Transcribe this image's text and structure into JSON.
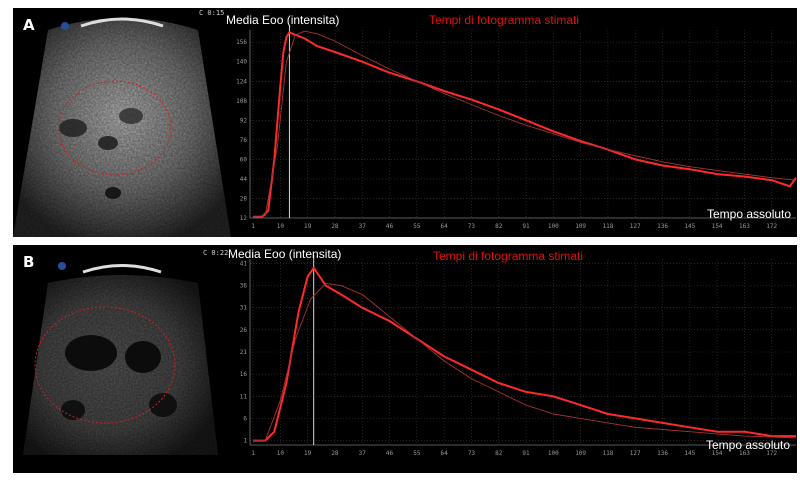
{
  "panels": [
    {
      "letter": "A",
      "depth_label": "C 0:15",
      "chart_title": "Media Eoo (intensita)",
      "chart_subtitle": "Tempi di fotogramma stimati",
      "x_label": "Tempo assoluto"
    },
    {
      "letter": "B",
      "depth_label": "C 0:22",
      "chart_title": "Media Eoo (intensita)",
      "chart_subtitle": "Tempi di fotogramma stimati",
      "x_label": "Tempo assoluto"
    }
  ],
  "chart_data": [
    {
      "type": "line",
      "title": "Media Eoo (intensita)",
      "subtitle": "Tempi di fotogramma stimati",
      "xlabel": "Tempo assoluto",
      "ylabel": "",
      "xlim": [
        0,
        180
      ],
      "ylim": [
        12,
        166
      ],
      "x_ticks": [
        1,
        10,
        19,
        28,
        37,
        46,
        55,
        64,
        73,
        82,
        91,
        100,
        109,
        118,
        127,
        136,
        145,
        154,
        163,
        172
      ],
      "y_ticks": [
        12,
        28,
        44,
        60,
        76,
        92,
        108,
        124,
        140,
        156
      ],
      "grid": true,
      "peak_marker_x": 13,
      "series": [
        {
          "style": "measured",
          "color": "#ff2a2a",
          "x": [
            1,
            4,
            6,
            8,
            10,
            11,
            12,
            13,
            14,
            16,
            18,
            22,
            28,
            37,
            46,
            55,
            64,
            73,
            82,
            91,
            100,
            109,
            118,
            127,
            136,
            145,
            154,
            163,
            172,
            178,
            180
          ],
          "y": [
            13,
            13,
            18,
            60,
            120,
            148,
            160,
            164,
            163,
            161,
            159,
            153,
            148,
            140,
            131,
            124,
            116,
            109,
            101,
            92,
            83,
            75,
            68,
            60,
            55,
            52,
            48,
            46,
            43,
            38,
            45
          ]
        },
        {
          "style": "fitted",
          "color": "#a83232",
          "x": [
            1,
            5,
            9,
            12,
            15,
            18,
            22,
            28,
            37,
            46,
            55,
            64,
            73,
            82,
            91,
            100,
            109,
            118,
            127,
            136,
            145,
            154,
            163,
            172,
            180
          ],
          "y": [
            13,
            14,
            70,
            140,
            162,
            165,
            163,
            157,
            145,
            134,
            124,
            114,
            105,
            96,
            88,
            81,
            74,
            68,
            63,
            58,
            54,
            51,
            48,
            45,
            43
          ]
        }
      ]
    },
    {
      "type": "line",
      "title": "Media Eoo (intensita)",
      "subtitle": "Tempi di fotogramma stimati",
      "xlabel": "Tempo assoluto",
      "ylabel": "",
      "xlim": [
        0,
        180
      ],
      "ylim": [
        0,
        42
      ],
      "x_ticks": [
        1,
        10,
        19,
        28,
        37,
        46,
        55,
        64,
        73,
        82,
        91,
        100,
        109,
        118,
        127,
        136,
        145,
        154,
        163,
        172
      ],
      "y_ticks": [
        1,
        6,
        11,
        16,
        21,
        26,
        31,
        36,
        41
      ],
      "grid": true,
      "peak_marker_x": 21,
      "series": [
        {
          "style": "measured",
          "color": "#ff2a2a",
          "x": [
            1,
            5,
            8,
            12,
            16,
            19,
            21,
            23,
            25,
            30,
            37,
            46,
            55,
            64,
            73,
            82,
            91,
            100,
            109,
            118,
            127,
            136,
            145,
            154,
            163,
            172,
            180
          ],
          "y": [
            1,
            1,
            3,
            14,
            30,
            38,
            40,
            38,
            36,
            34,
            31,
            28,
            24,
            20,
            17,
            14,
            12,
            11,
            9,
            7,
            6,
            5,
            4,
            3,
            3,
            2,
            2
          ]
        },
        {
          "style": "fitted",
          "color": "#a83232",
          "x": [
            1,
            5,
            10,
            15,
            20,
            25,
            30,
            37,
            46,
            55,
            64,
            73,
            82,
            91,
            100,
            109,
            118,
            127,
            136,
            145,
            154,
            163,
            172,
            180
          ],
          "y": [
            1,
            1,
            10,
            24,
            33,
            36.5,
            36,
            34,
            29,
            24,
            19,
            15,
            12,
            9,
            7,
            6,
            5,
            4,
            3.5,
            3,
            2.5,
            2,
            1.8,
            1.6
          ]
        }
      ]
    }
  ]
}
